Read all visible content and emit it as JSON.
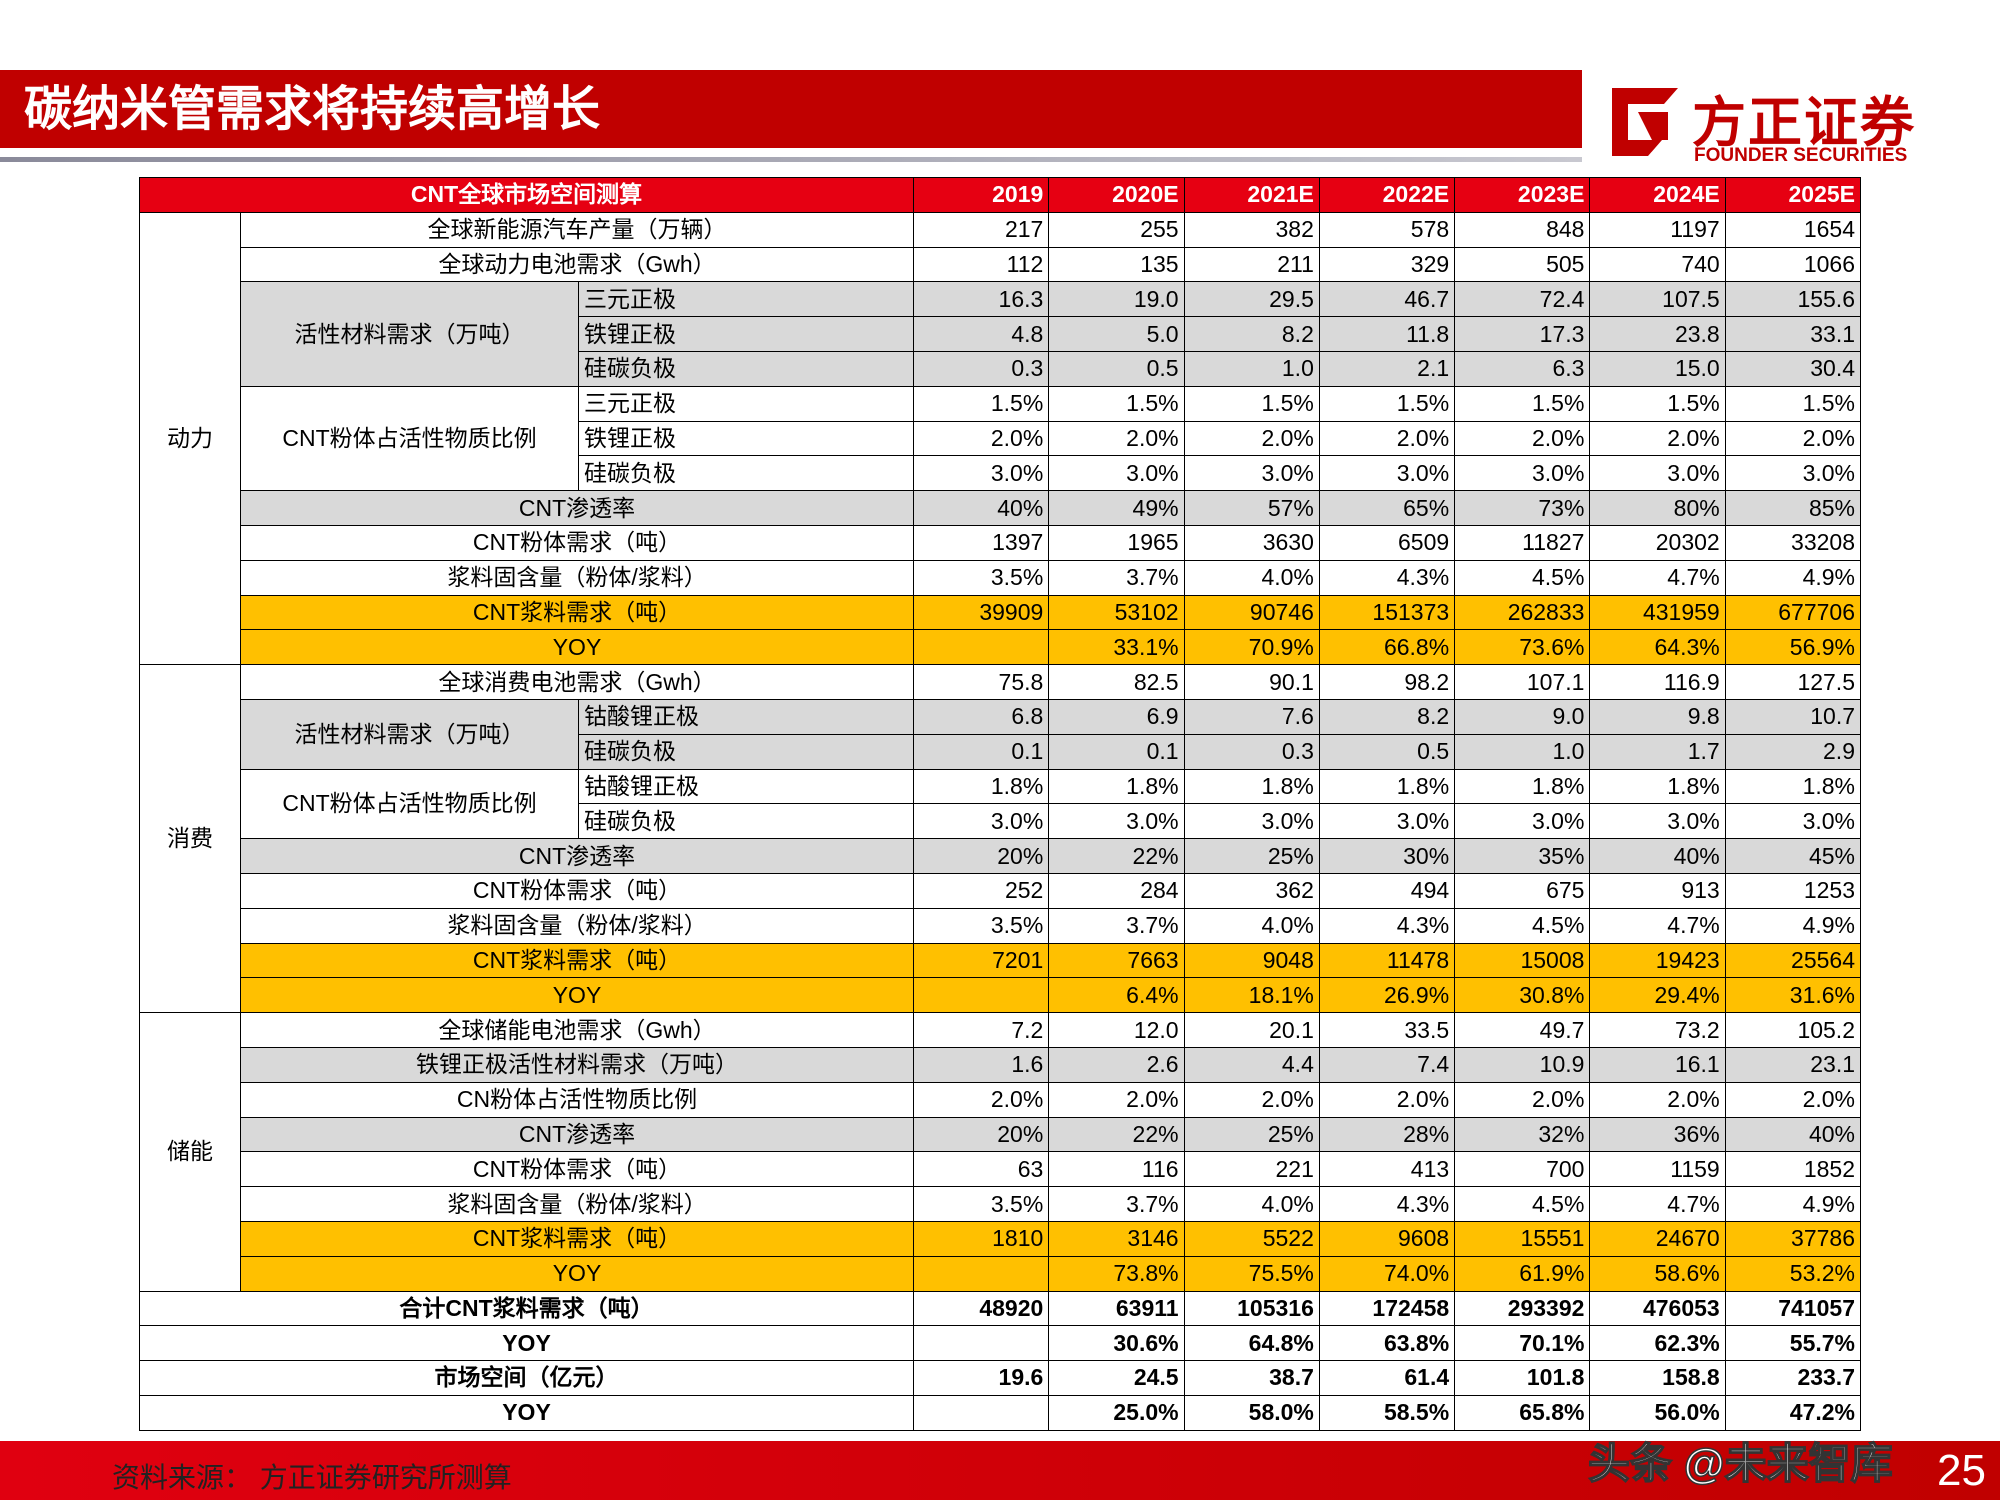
{
  "header": {
    "title": "碳纳米管需求将持续高增长",
    "logo": "方正证券",
    "logo_en": "FOUNDER SECURITIES"
  },
  "table": {
    "columns": [
      "CNT全球市场空间测算",
      "2019",
      "2020E",
      "2021E",
      "2022E",
      "2023E",
      "2024E",
      "2025E"
    ],
    "header_color": "#e60012",
    "sections": [
      {
        "group": "动力",
        "rows": [
          {
            "label": "全球新能源汽车产量（万辆）",
            "values": [
              "217",
              "255",
              "382",
              "578",
              "848",
              "1197",
              "1654"
            ]
          },
          {
            "label": "全球动力电池需求（Gwh）",
            "values": [
              "112",
              "135",
              "211",
              "329",
              "505",
              "740",
              "1066"
            ]
          },
          {
            "label": "活性材料需求（万吨）",
            "bg": "#d9d9d9",
            "items": [
              {
                "sub": "三元正极",
                "values": [
                  "16.3",
                  "19.0",
                  "29.5",
                  "46.7",
                  "72.4",
                  "107.5",
                  "155.6"
                ]
              },
              {
                "sub": "铁锂正极",
                "values": [
                  "4.8",
                  "5.0",
                  "8.2",
                  "11.8",
                  "17.3",
                  "23.8",
                  "33.1"
                ]
              },
              {
                "sub": "硅碳负极",
                "values": [
                  "0.3",
                  "0.5",
                  "1.0",
                  "2.1",
                  "6.3",
                  "15.0",
                  "30.4"
                ]
              }
            ]
          },
          {
            "label": "CNT粉体占活性物质比例",
            "items": [
              {
                "sub": "三元正极",
                "values": [
                  "1.5%",
                  "1.5%",
                  "1.5%",
                  "1.5%",
                  "1.5%",
                  "1.5%",
                  "1.5%"
                ]
              },
              {
                "sub": "铁锂正极",
                "values": [
                  "2.0%",
                  "2.0%",
                  "2.0%",
                  "2.0%",
                  "2.0%",
                  "2.0%",
                  "2.0%"
                ]
              },
              {
                "sub": "硅碳负极",
                "values": [
                  "3.0%",
                  "3.0%",
                  "3.0%",
                  "3.0%",
                  "3.0%",
                  "3.0%",
                  "3.0%"
                ]
              }
            ]
          },
          {
            "label": "CNT渗透率",
            "bg": "#d9d9d9",
            "values": [
              "40%",
              "49%",
              "57%",
              "65%",
              "73%",
              "80%",
              "85%"
            ]
          },
          {
            "label": "CNT粉体需求（吨）",
            "values": [
              "1397",
              "1965",
              "3630",
              "6509",
              "11827",
              "20302",
              "33208"
            ]
          },
          {
            "label": "浆料固含量（粉体/浆料）",
            "values": [
              "3.5%",
              "3.7%",
              "4.0%",
              "4.3%",
              "4.5%",
              "4.7%",
              "4.9%"
            ]
          },
          {
            "label": "CNT浆料需求（吨）",
            "bg": "#ffc000",
            "values": [
              "39909",
              "53102",
              "90746",
              "151373",
              "262833",
              "431959",
              "677706"
            ]
          },
          {
            "label": "YOY",
            "bg": "#ffc000",
            "values": [
              null,
              "33.1%",
              "70.9%",
              "66.8%",
              "73.6%",
              "64.3%",
              "56.9%"
            ]
          }
        ]
      },
      {
        "group": "消费",
        "rows": [
          {
            "label": "全球消费电池需求（Gwh）",
            "values": [
              "75.8",
              "82.5",
              "90.1",
              "98.2",
              "107.1",
              "116.9",
              "127.5"
            ]
          },
          {
            "label": "活性材料需求（万吨）",
            "bg": "#d9d9d9",
            "items": [
              {
                "sub": "钴酸锂正极",
                "values": [
                  "6.8",
                  "6.9",
                  "7.6",
                  "8.2",
                  "9.0",
                  "9.8",
                  "10.7"
                ]
              },
              {
                "sub": "硅碳负极",
                "values": [
                  "0.1",
                  "0.1",
                  "0.3",
                  "0.5",
                  "1.0",
                  "1.7",
                  "2.9"
                ]
              }
            ]
          },
          {
            "label": "CNT粉体占活性物质比例",
            "items": [
              {
                "sub": "钴酸锂正极",
                "values": [
                  "1.8%",
                  "1.8%",
                  "1.8%",
                  "1.8%",
                  "1.8%",
                  "1.8%",
                  "1.8%"
                ]
              },
              {
                "sub": "硅碳负极",
                "values": [
                  "3.0%",
                  "3.0%",
                  "3.0%",
                  "3.0%",
                  "3.0%",
                  "3.0%",
                  "3.0%"
                ]
              }
            ]
          },
          {
            "label": "CNT渗透率",
            "bg": "#d9d9d9",
            "values": [
              "20%",
              "22%",
              "25%",
              "30%",
              "35%",
              "40%",
              "45%"
            ]
          },
          {
            "label": "CNT粉体需求（吨）",
            "values": [
              "252",
              "284",
              "362",
              "494",
              "675",
              "913",
              "1253"
            ]
          },
          {
            "label": "浆料固含量（粉体/浆料）",
            "values": [
              "3.5%",
              "3.7%",
              "4.0%",
              "4.3%",
              "4.5%",
              "4.7%",
              "4.9%"
            ]
          },
          {
            "label": "CNT浆料需求（吨）",
            "bg": "#ffc000",
            "values": [
              "7201",
              "7663",
              "9048",
              "11478",
              "15008",
              "19423",
              "25564"
            ]
          },
          {
            "label": "YOY",
            "bg": "#ffc000",
            "values": [
              null,
              "6.4%",
              "18.1%",
              "26.9%",
              "30.8%",
              "29.4%",
              "31.6%"
            ]
          }
        ]
      },
      {
        "group": "储能",
        "rows": [
          {
            "label": "全球储能电池需求（Gwh）",
            "values": [
              "7.2",
              "12.0",
              "20.1",
              "33.5",
              "49.7",
              "73.2",
              "105.2"
            ]
          },
          {
            "label": "铁锂正极活性材料需求（万吨）",
            "bg": "#d9d9d9",
            "values": [
              "1.6",
              "2.6",
              "4.4",
              "7.4",
              "10.9",
              "16.1",
              "23.1"
            ]
          },
          {
            "label": "CN粉体占活性物质比例",
            "values": [
              "2.0%",
              "2.0%",
              "2.0%",
              "2.0%",
              "2.0%",
              "2.0%",
              "2.0%"
            ]
          },
          {
            "label": "CNT渗透率",
            "bg": "#d9d9d9",
            "values": [
              "20%",
              "22%",
              "25%",
              "28%",
              "32%",
              "36%",
              "40%"
            ]
          },
          {
            "label": "CNT粉体需求（吨）",
            "values": [
              "63",
              "116",
              "221",
              "413",
              "700",
              "1159",
              "1852"
            ]
          },
          {
            "label": "浆料固含量（粉体/浆料）",
            "values": [
              "3.5%",
              "3.7%",
              "4.0%",
              "4.3%",
              "4.5%",
              "4.7%",
              "4.9%"
            ]
          },
          {
            "label": "CNT浆料需求（吨）",
            "bg": "#ffc000",
            "values": [
              "1810",
              "3146",
              "5522",
              "9608",
              "15551",
              "24670",
              "37786"
            ]
          },
          {
            "label": "YOY",
            "bg": "#ffc000",
            "values": [
              null,
              "73.8%",
              "75.5%",
              "74.0%",
              "61.9%",
              "58.6%",
              "53.2%"
            ]
          }
        ]
      }
    ],
    "totals": [
      {
        "label": "合计CNT浆料需求（吨）",
        "values": [
          "48920",
          "63911",
          "105316",
          "172458",
          "293392",
          "476053",
          "741057"
        ]
      },
      {
        "label": "YOY",
        "values": [
          null,
          "30.6%",
          "64.8%",
          "63.8%",
          "70.1%",
          "62.3%",
          "55.7%"
        ]
      },
      {
        "label": "市场空间（亿元）",
        "values": [
          "19.6",
          "24.5",
          "38.7",
          "61.4",
          "101.8",
          "158.8",
          "233.7"
        ]
      },
      {
        "label": "YOY",
        "values": [
          null,
          "25.0%",
          "58.0%",
          "58.5%",
          "65.8%",
          "56.0%",
          "47.2%"
        ]
      }
    ]
  },
  "footer": {
    "source": "资料来源： 方正证券研究所测算",
    "page": "25",
    "watermark": "头条 @未来智库"
  }
}
